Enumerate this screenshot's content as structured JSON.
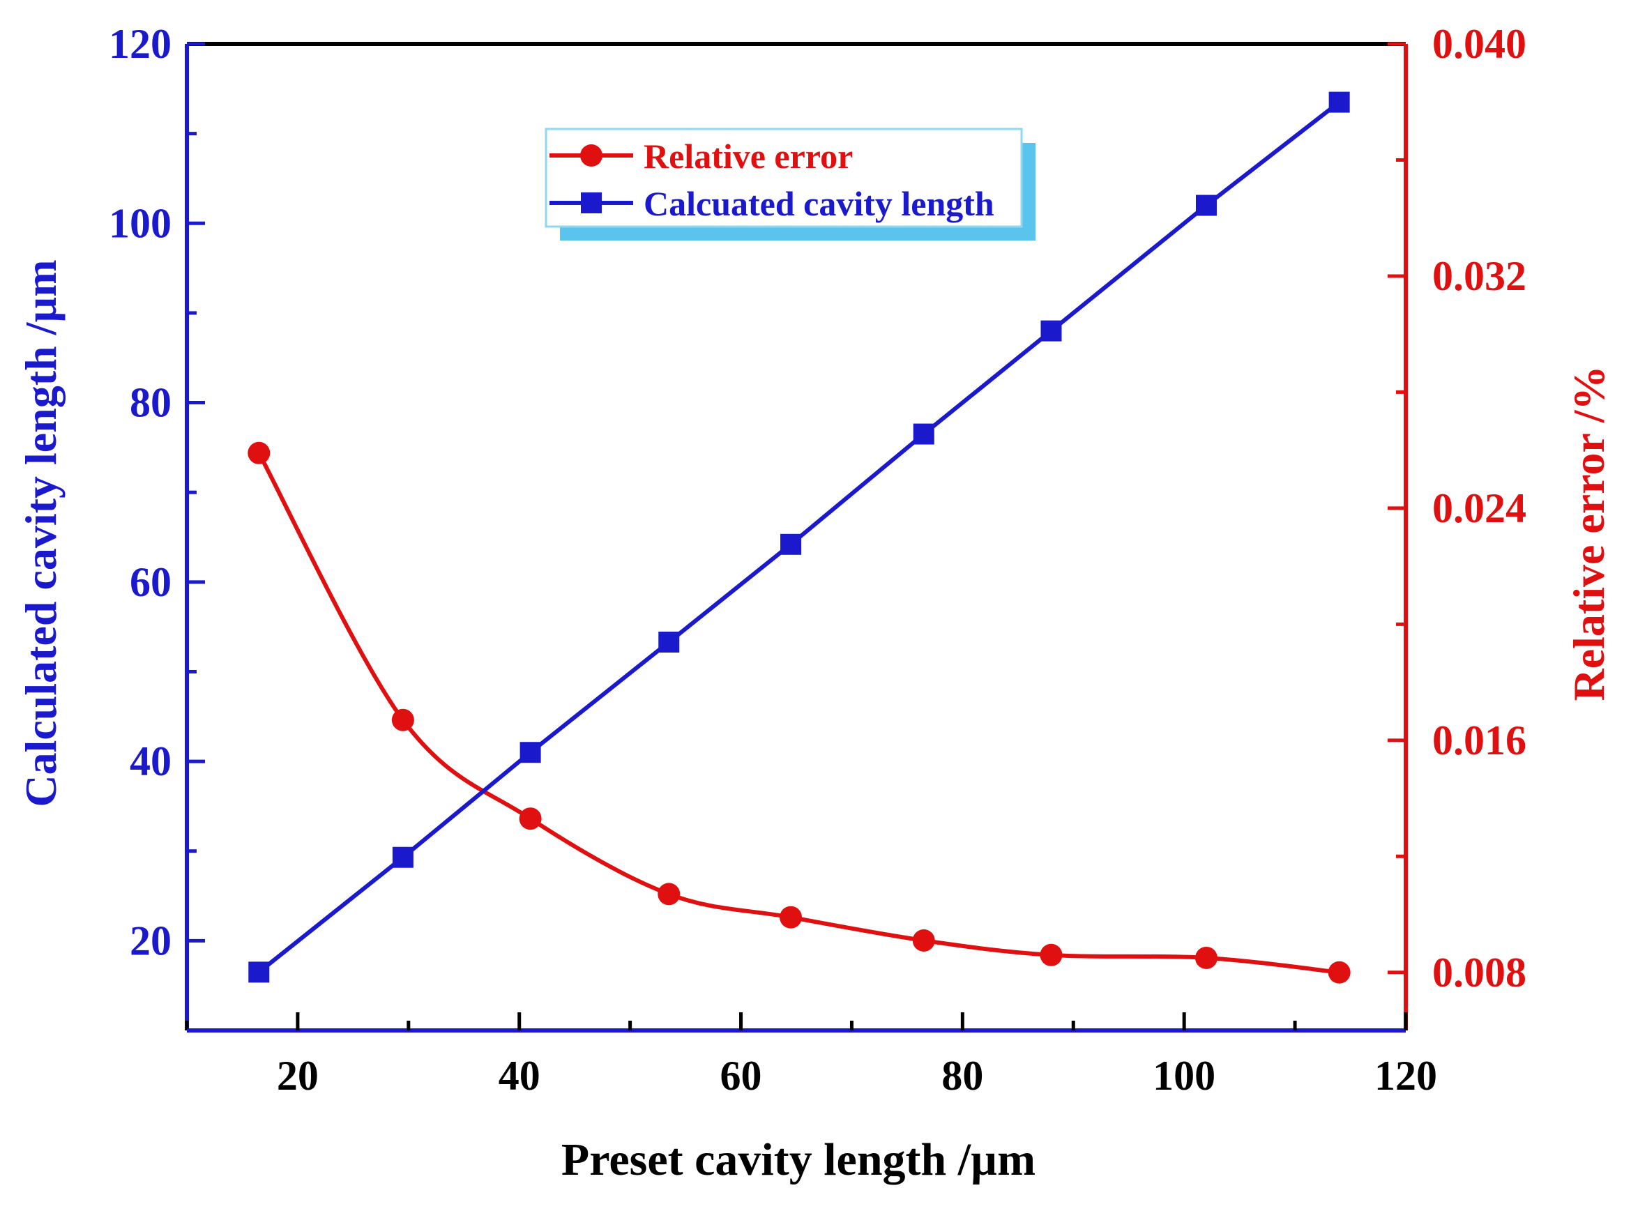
{
  "chart_data": {
    "type": "line",
    "xlabel": "Preset cavity length /µm",
    "ylabel_left": "Calculated cavity length /µm",
    "ylabel_right": "Relative error /%",
    "xlim": [
      10,
      120
    ],
    "ylim_left": [
      10,
      120
    ],
    "ylim_right": [
      0.006,
      0.04
    ],
    "x_ticks": [
      20,
      40,
      60,
      80,
      100,
      120
    ],
    "y_left_ticks": [
      20,
      40,
      60,
      80,
      100,
      120
    ],
    "y_right_ticks": [
      "0.008",
      "0.016",
      "0.024",
      "0.032",
      "0.040"
    ],
    "y_right_tick_values": [
      0.008,
      0.016,
      0.024,
      0.032,
      0.04
    ],
    "legend_position": "top-center",
    "colors": {
      "left_axis": "#1a1acc",
      "right_axis": "#e01010",
      "frame": "#000000",
      "legend_border": "#8fd8f0",
      "legend_shadow": "#5bc4ec"
    },
    "x": [
      16.5,
      29.5,
      41.0,
      53.5,
      64.5,
      76.5,
      88.0,
      102.0,
      114.0
    ],
    "series": [
      {
        "name": "Relative error",
        "axis": "right",
        "color": "#e01010",
        "marker": "circle",
        "values": [
          0.0259,
          0.0167,
          0.0133,
          0.0107,
          0.0099,
          0.0091,
          0.0086,
          0.0085,
          0.008
        ]
      },
      {
        "name": "Calcuated cavity length",
        "axis": "left",
        "color": "#1a1acc",
        "marker": "square",
        "values": [
          16.5,
          29.3,
          41.0,
          53.3,
          64.2,
          76.5,
          88.0,
          102.0,
          113.5
        ]
      }
    ]
  }
}
